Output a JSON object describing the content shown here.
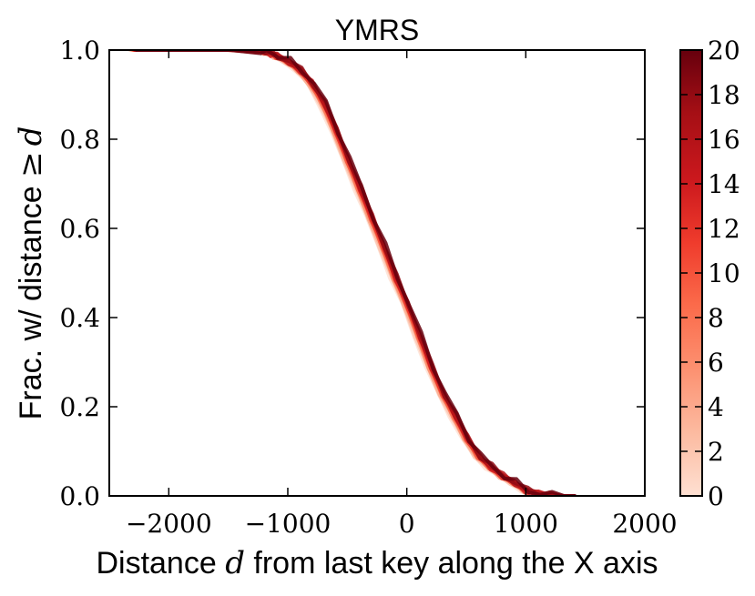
{
  "chart_data": {
    "type": "line",
    "title": "YMRS",
    "xlabel": "Distance d from last key along the X axis",
    "xlabel_parts": {
      "before": "Distance ",
      "var": "d",
      "after": " from last key along the X axis"
    },
    "ylabel": "Frac. w/ distance ≥ d",
    "ylabel_parts": {
      "before": "Frac. w/ distance ",
      "op": "≥",
      "var": "d"
    },
    "xlim": [
      -2500,
      2000
    ],
    "ylim": [
      0.0,
      1.0
    ],
    "xticks": [
      -2000,
      -1000,
      0,
      1000,
      2000
    ],
    "xtick_labels": [
      "−2000",
      "−1000",
      "0",
      "1000",
      "2000"
    ],
    "yticks": [
      0.0,
      0.2,
      0.4,
      0.6,
      0.8,
      1.0
    ],
    "ytick_labels": [
      "0.0",
      "0.2",
      "0.4",
      "0.6",
      "0.8",
      "1.0"
    ],
    "grid": false,
    "legend": "none",
    "colorbar": {
      "range": [
        0,
        20
      ],
      "ticks": [
        0,
        2,
        4,
        6,
        8,
        10,
        12,
        14,
        16,
        18,
        20
      ],
      "colormap": "Reds",
      "colors": [
        "#fee0d2",
        "#fcbba1",
        "#fc9272",
        "#fb6a4a",
        "#ef3b2c",
        "#cb181d",
        "#a50f15",
        "#67000d"
      ]
    },
    "base_curve": {
      "x": [
        -2300,
        -2000,
        -1500,
        -1250,
        -1200,
        -1150,
        -1100,
        -1000,
        -900,
        -800,
        -700,
        -600,
        -500,
        -400,
        -300,
        -200,
        -100,
        0,
        100,
        200,
        300,
        400,
        500,
        600,
        700,
        800,
        900,
        1000,
        1100,
        1200,
        1300,
        1400
      ],
      "y": [
        1.0,
        1.0,
        1.0,
        1.0,
        0.997,
        0.993,
        0.987,
        0.975,
        0.955,
        0.925,
        0.88,
        0.82,
        0.755,
        0.69,
        0.625,
        0.56,
        0.49,
        0.43,
        0.36,
        0.29,
        0.23,
        0.18,
        0.13,
        0.09,
        0.065,
        0.045,
        0.03,
        0.012,
        0.005,
        0.002,
        0.0,
        0.0
      ]
    },
    "series": [
      {
        "value": 0,
        "x_shift": -40,
        "y_noise": 0.004
      },
      {
        "value": 2,
        "x_shift": -30,
        "y_noise": 0.004
      },
      {
        "value": 4,
        "x_shift": -22,
        "y_noise": 0.005
      },
      {
        "value": 6,
        "x_shift": -15,
        "y_noise": 0.005
      },
      {
        "value": 8,
        "x_shift": -9,
        "y_noise": 0.006
      },
      {
        "value": 10,
        "x_shift": -4,
        "y_noise": 0.006
      },
      {
        "value": 12,
        "x_shift": 0,
        "y_noise": 0.006
      },
      {
        "value": 14,
        "x_shift": 5,
        "y_noise": 0.007
      },
      {
        "value": 16,
        "x_shift": 10,
        "y_noise": 0.007
      },
      {
        "value": 18,
        "x_shift": 16,
        "y_noise": 0.008
      },
      {
        "value": 20,
        "x_shift": 22,
        "y_noise": 0.008
      }
    ]
  }
}
